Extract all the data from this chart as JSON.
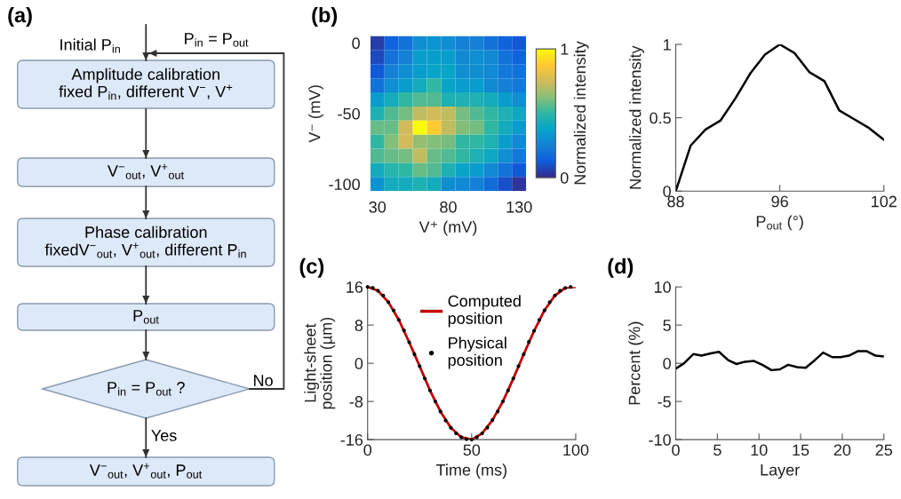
{
  "chart_data": [
    {
      "type": "other",
      "title": "(a)",
      "annotations": [
        "Initial P$_{in}$",
        "P$_{in}$ = P$_{out}$",
        "Amplitude calibration\nfixed P$_{in}$, different V$^{−}$, V$^{+}$",
        "V$^{−}$$_{out}$, V$^{+}$$_{out}$",
        "Phase calibration\nfixedV$^{−}$$_{out}$, V$^{+}$$_{out}$, different P$_{in}$",
        "P$_{out}$",
        "P$_{in}$ = P$_{out}$ ?",
        "No",
        "Yes",
        "V$^{−}$$_{out}$, V$^{+}$$_{out}$, P$_{out}$"
      ]
    },
    {
      "type": "heatmap",
      "title": "(b)",
      "xlabel": "V⁺ (mV)",
      "ylabel": "V⁻ (mV)",
      "clabel": "Normalized intensity",
      "clim": [
        0,
        1
      ],
      "cticks": [
        0,
        1
      ],
      "categories": [
        "30",
        null,
        null,
        null,
        null,
        "80",
        null,
        null,
        null,
        null,
        "130"
      ],
      "y_categories": [
        "0",
        null,
        null,
        null,
        null,
        "-50",
        null,
        null,
        null,
        null,
        "-100"
      ],
      "cells": [
        [
          0.05,
          0.15,
          0.2,
          0.3,
          0.32,
          0.3,
          0.25,
          0.25,
          0.2,
          0.15,
          0.12
        ],
        [
          0.08,
          0.2,
          0.25,
          0.35,
          0.35,
          0.35,
          0.28,
          0.3,
          0.28,
          0.2,
          0.15
        ],
        [
          0.12,
          0.25,
          0.3,
          0.35,
          0.38,
          0.38,
          0.3,
          0.3,
          0.28,
          0.22,
          0.2
        ],
        [
          0.2,
          0.3,
          0.35,
          0.42,
          0.5,
          0.38,
          0.35,
          0.35,
          0.28,
          0.25,
          0.22
        ],
        [
          0.35,
          0.42,
          0.5,
          0.55,
          0.55,
          0.45,
          0.45,
          0.45,
          0.42,
          0.35,
          0.3
        ],
        [
          0.45,
          0.55,
          0.6,
          0.72,
          0.75,
          0.72,
          0.6,
          0.55,
          0.5,
          0.45,
          0.4
        ],
        [
          0.58,
          0.58,
          0.75,
          1.0,
          0.88,
          0.72,
          0.62,
          0.6,
          0.5,
          0.42,
          0.35
        ],
        [
          0.5,
          0.62,
          0.75,
          0.65,
          0.62,
          0.6,
          0.5,
          0.5,
          0.45,
          0.35,
          0.28
        ],
        [
          0.55,
          0.58,
          0.6,
          0.72,
          0.58,
          0.55,
          0.5,
          0.45,
          0.4,
          0.3,
          0.22
        ],
        [
          0.42,
          0.48,
          0.5,
          0.58,
          0.55,
          0.45,
          0.38,
          0.35,
          0.28,
          0.2,
          0.12
        ],
        [
          0.32,
          0.42,
          0.42,
          0.45,
          0.42,
          0.3,
          0.28,
          0.25,
          0.18,
          0.1,
          0.03
        ]
      ]
    },
    {
      "type": "line",
      "xlabel": "P$_{out}$ (°)",
      "ylabel": "Normalized intensity",
      "marker": "none",
      "categories": [
        "88",
        null,
        null,
        null,
        null,
        null,
        null,
        "96",
        null,
        null,
        null,
        null,
        null,
        null,
        "102"
      ],
      "series": [
        {
          "color": "#000000",
          "values": [
            0,
            0.31,
            0.42,
            0.48,
            0.63,
            0.8,
            0.93,
            1.0,
            0.94,
            0.81,
            0.75,
            0.55,
            0.49,
            0.43,
            0.35
          ]
        }
      ],
      "ylim": [
        0,
        1
      ],
      "yticks": [
        0,
        0.5,
        1
      ]
    },
    {
      "type": "line",
      "title": "(c)",
      "xlabel": "Time (ms)",
      "ylabel": "Light-sheet\nposition (µm)",
      "legend": "top",
      "xlim": [
        0,
        100
      ],
      "xticks": [
        0,
        50,
        100
      ],
      "ylim": [
        -16,
        16
      ],
      "yticks": [
        16,
        8,
        0,
        -8,
        -16
      ],
      "series": [
        {
          "name": "Computed position",
          "type": "line",
          "color": "#c00000",
          "marker": "none",
          "x": [
            0,
            5,
            10,
            15,
            20,
            25,
            30,
            35,
            40,
            45,
            50,
            55,
            60,
            65,
            70,
            75,
            80,
            85,
            90,
            95,
            100
          ],
          "values": [
            16,
            15.2,
            12.8,
            9.1,
            4.4,
            -0.6,
            -5.7,
            -10.1,
            -13.5,
            -15.5,
            -16,
            -14.7,
            -11.9,
            -8.0,
            -3.2,
            1.9,
            6.8,
            11.1,
            14.2,
            15.8,
            16
          ]
        },
        {
          "name": "Physical position",
          "type": "scatter",
          "color": "#000000",
          "marker": "circle",
          "x": [
            0,
            2.5,
            5,
            7.5,
            10,
            12.5,
            15,
            17.5,
            20,
            22.5,
            25,
            27.5,
            30,
            32.5,
            35,
            37.5,
            40,
            42.5,
            45,
            47.5,
            50,
            52.5,
            55,
            57.5,
            60,
            62.5,
            65,
            67.5,
            70,
            72.5,
            75,
            77.5,
            80,
            82.5,
            85,
            87.5,
            90,
            92.5,
            95,
            97.5
          ],
          "values": [
            16,
            15.8,
            15.2,
            14.2,
            12.8,
            11.1,
            9.1,
            6.9,
            4.4,
            1.9,
            -0.6,
            -3.2,
            -5.7,
            -8.0,
            -10.1,
            -12.0,
            -13.5,
            -14.7,
            -15.5,
            -15.9,
            -16,
            -15.5,
            -14.7,
            -13.5,
            -11.9,
            -10.1,
            -8.0,
            -5.7,
            -3.2,
            -0.6,
            1.9,
            4.5,
            6.8,
            9.1,
            11.1,
            12.8,
            14.2,
            15.2,
            15.8,
            16.0
          ]
        }
      ]
    },
    {
      "type": "line",
      "title": "(d)",
      "xlabel": "Layer",
      "ylabel": "Percent (%)",
      "marker": "none",
      "xlim": [
        0,
        25
      ],
      "xticks": [
        0,
        5,
        10,
        15,
        20,
        25
      ],
      "ylim": [
        -10,
        10
      ],
      "yticks": [
        10,
        5,
        0,
        -5,
        -10
      ],
      "series": [
        {
          "color": "#000000",
          "x": [
            0,
            1.0,
            2.1,
            3.1,
            4.2,
            5.2,
            6.3,
            7.3,
            8.3,
            9.4,
            10.4,
            11.5,
            12.5,
            13.5,
            14.6,
            15.6,
            16.7,
            17.7,
            18.8,
            19.8,
            20.8,
            21.9,
            22.9,
            24.0,
            25
          ],
          "values": [
            -0.7,
            0.0,
            1.2,
            1.0,
            1.3,
            1.5,
            0.4,
            -0.1,
            0.2,
            0.3,
            -0.2,
            -0.9,
            -0.8,
            -0.2,
            -0.5,
            -0.6,
            0.4,
            1.4,
            0.8,
            0.8,
            1.0,
            1.6,
            1.6,
            1.0,
            0.9
          ]
        }
      ]
    }
  ]
}
